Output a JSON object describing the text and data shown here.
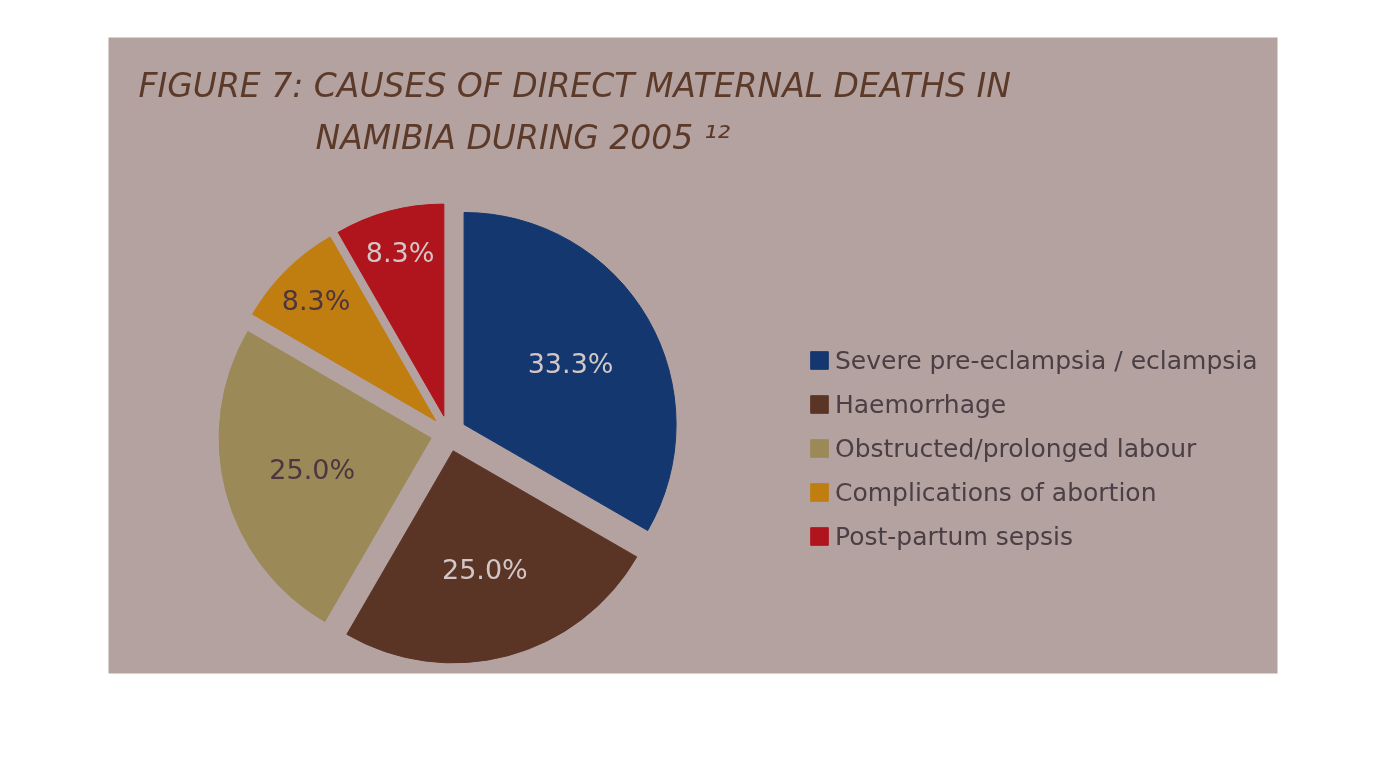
{
  "chart_data": {
    "type": "pie",
    "title": "FIGURE 7: CAUSES OF DIRECT MATERNAL DEATHS IN NAMIBIA DURING 2005 ¹²",
    "categories": [
      "Severe pre-eclampsia / eclampsia",
      "Haemorrhage",
      "Obstructed/prolonged labour",
      "Complications of abortion",
      "Post-partum sepsis"
    ],
    "values": [
      33.3,
      25.0,
      25.0,
      8.3,
      8.3
    ],
    "colors": [
      "#13376e",
      "#5a3526",
      "#9b8a58",
      "#c07e10",
      "#b0141c"
    ],
    "value_labels": [
      "33.3%",
      "25.0%",
      "25.0%",
      "8.3%",
      "8.3%"
    ],
    "legend": "right"
  }
}
